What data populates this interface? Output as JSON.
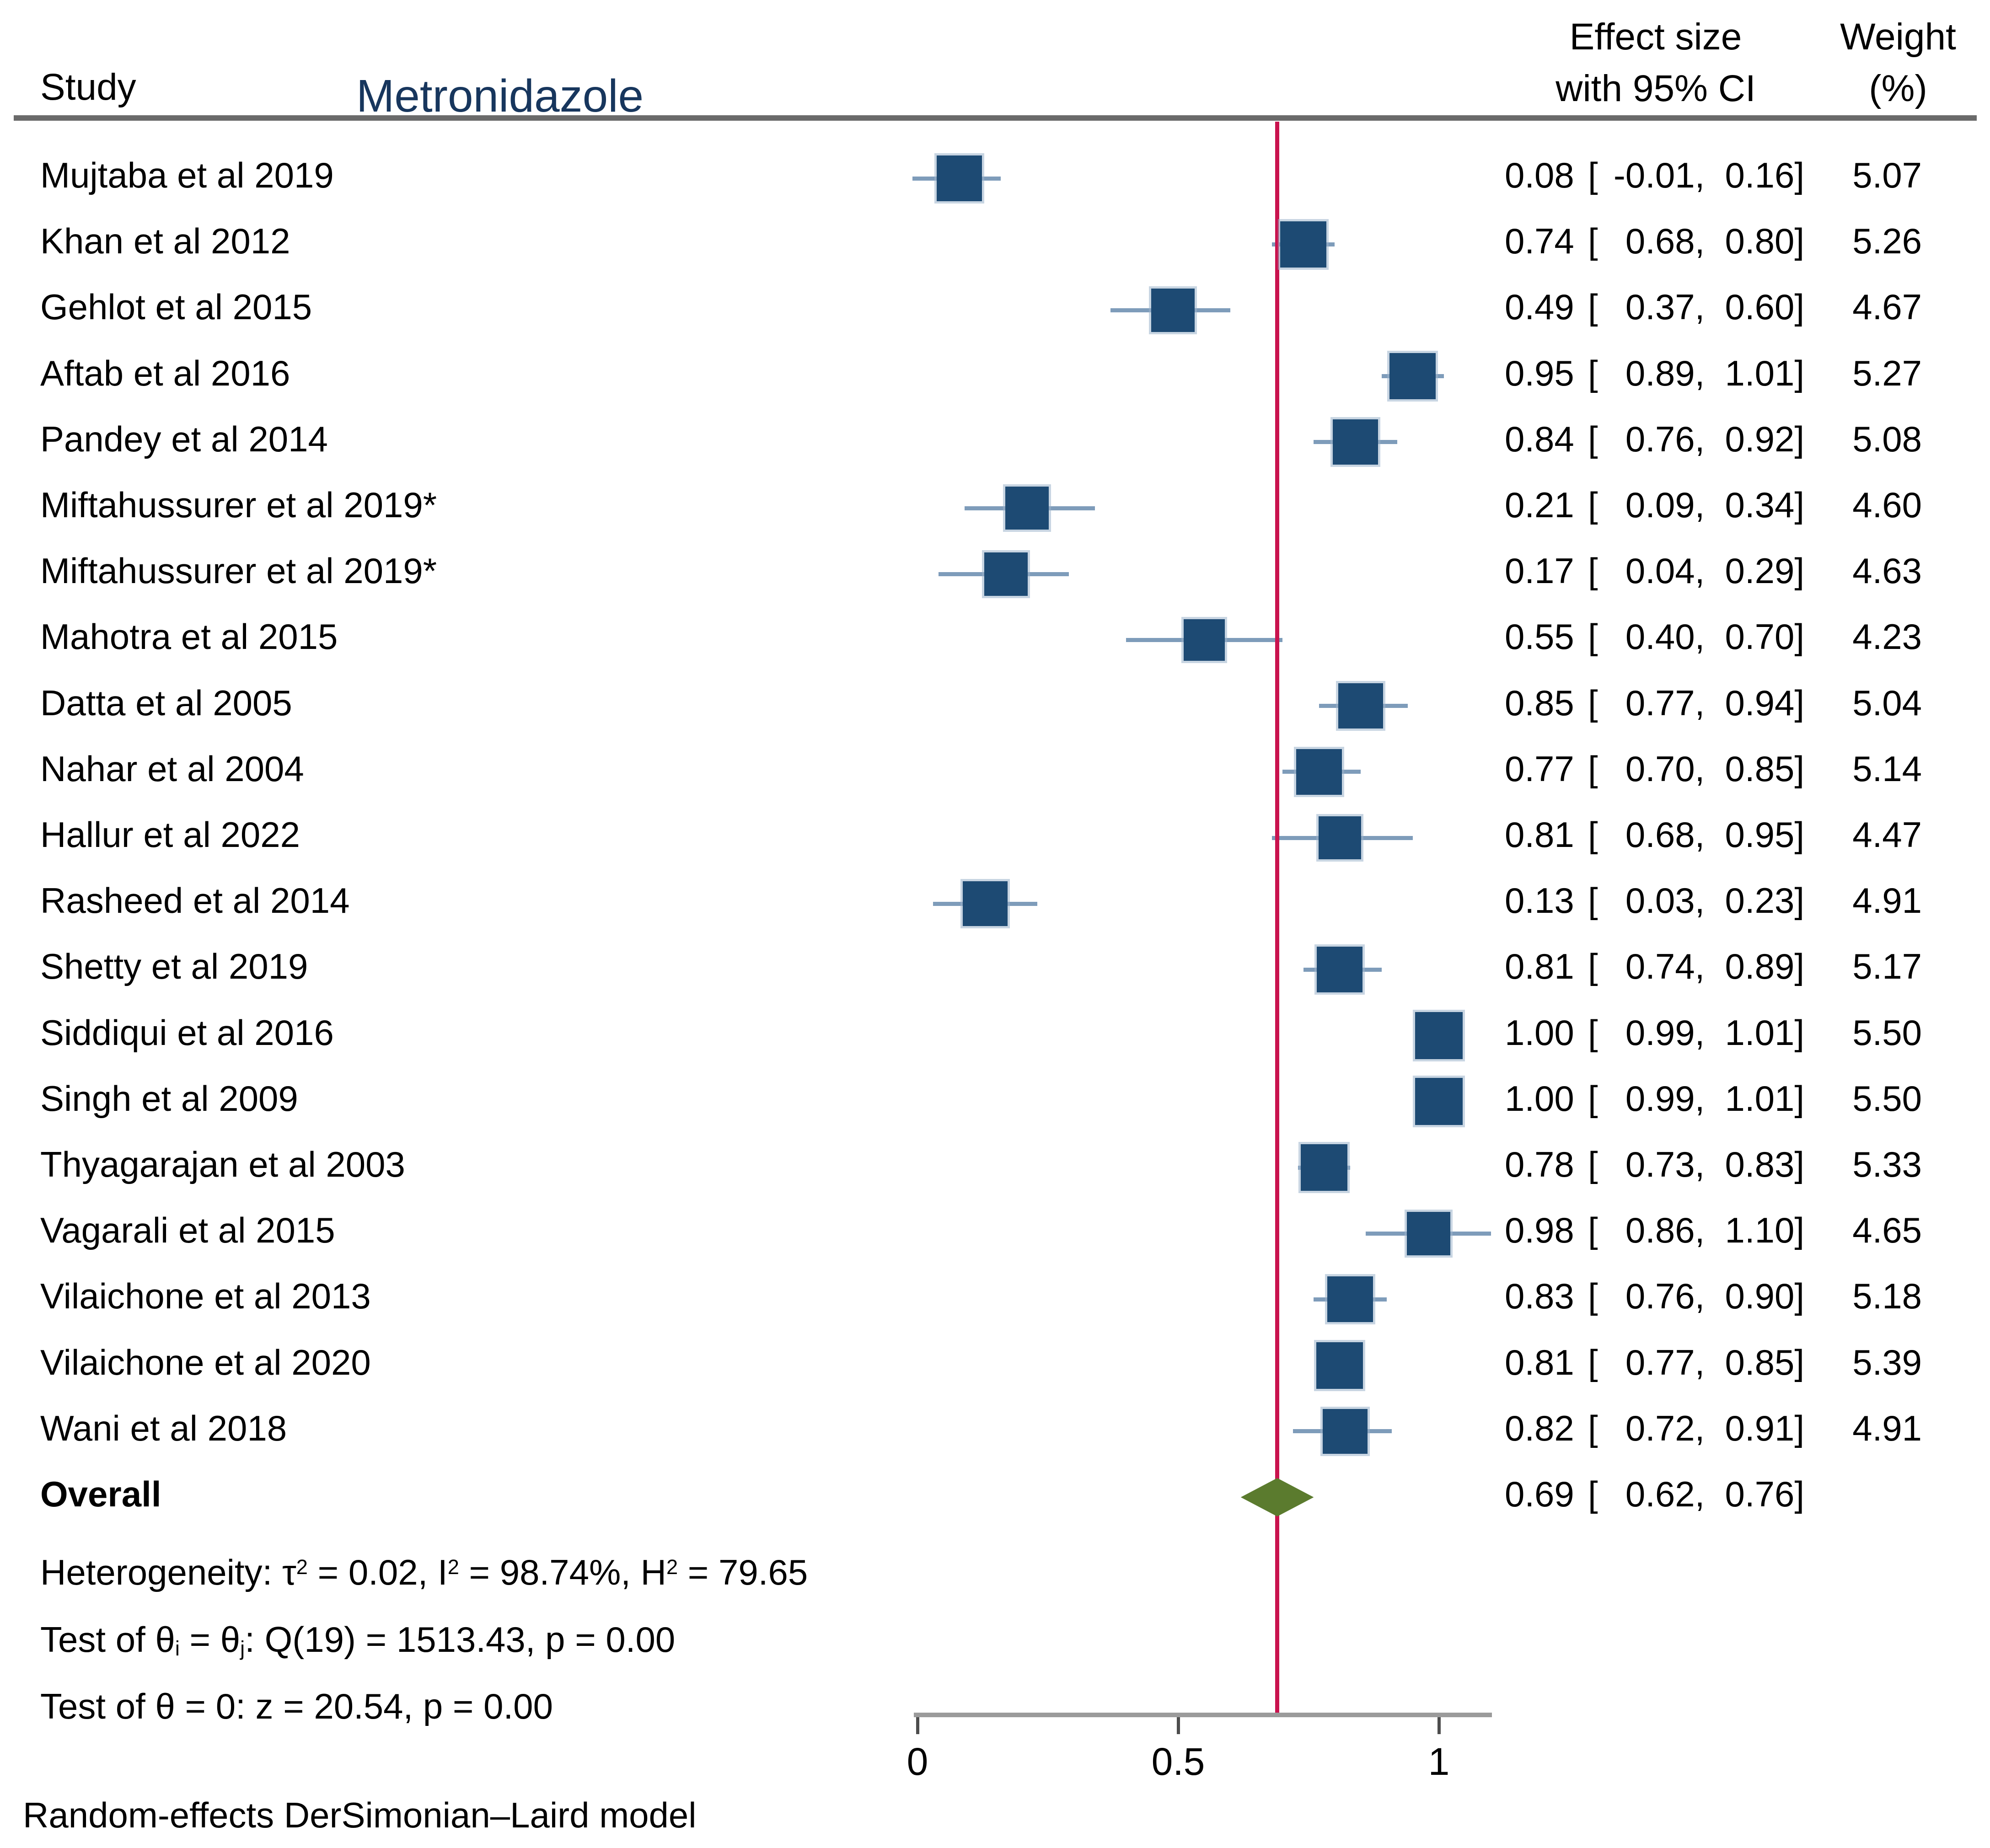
{
  "header": {
    "study_col": "Study",
    "title": "Metronidazole",
    "effect_col_line1": "Effect size",
    "effect_col_line2": "with 95% CI",
    "weight_col_line1": "Weight",
    "weight_col_line2": "(%)"
  },
  "chart_data": {
    "type": "forest",
    "title": "Metronidazole",
    "x_axis": {
      "ticks": [
        0,
        0.5,
        1
      ],
      "tick_labels": [
        "0",
        "0.5",
        "1"
      ],
      "range": [
        -0.01,
        1.1
      ],
      "grid": false
    },
    "reference_line_x": 0.69,
    "studies": [
      {
        "label": "Mujtaba et al 2019",
        "est": 0.08,
        "lb": -0.01,
        "ub": 0.16,
        "weight": 5.07
      },
      {
        "label": "Khan et al 2012",
        "est": 0.74,
        "lb": 0.68,
        "ub": 0.8,
        "weight": 5.26
      },
      {
        "label": "Gehlot et al 2015",
        "est": 0.49,
        "lb": 0.37,
        "ub": 0.6,
        "weight": 4.67
      },
      {
        "label": "Aftab et al 2016",
        "est": 0.95,
        "lb": 0.89,
        "ub": 1.01,
        "weight": 5.27
      },
      {
        "label": "Pandey et al 2014",
        "est": 0.84,
        "lb": 0.76,
        "ub": 0.92,
        "weight": 5.08
      },
      {
        "label": "Miftahussurer et al 2019*",
        "est": 0.21,
        "lb": 0.09,
        "ub": 0.34,
        "weight": 4.6
      },
      {
        "label": "Miftahussurer et al 2019*",
        "est": 0.17,
        "lb": 0.04,
        "ub": 0.29,
        "weight": 4.63
      },
      {
        "label": "Mahotra et al 2015",
        "est": 0.55,
        "lb": 0.4,
        "ub": 0.7,
        "weight": 4.23
      },
      {
        "label": "Datta et al 2005",
        "est": 0.85,
        "lb": 0.77,
        "ub": 0.94,
        "weight": 5.04
      },
      {
        "label": "Nahar et al 2004",
        "est": 0.77,
        "lb": 0.7,
        "ub": 0.85,
        "weight": 5.14
      },
      {
        "label": "Hallur et al 2022",
        "est": 0.81,
        "lb": 0.68,
        "ub": 0.95,
        "weight": 4.47
      },
      {
        "label": "Rasheed et al 2014",
        "est": 0.13,
        "lb": 0.03,
        "ub": 0.23,
        "weight": 4.91
      },
      {
        "label": "Shetty et al 2019",
        "est": 0.81,
        "lb": 0.74,
        "ub": 0.89,
        "weight": 5.17
      },
      {
        "label": "Siddiqui et al 2016",
        "est": 1.0,
        "lb": 0.99,
        "ub": 1.01,
        "weight": 5.5
      },
      {
        "label": "Singh et al 2009",
        "est": 1.0,
        "lb": 0.99,
        "ub": 1.01,
        "weight": 5.5
      },
      {
        "label": "Thyagarajan et al 2003",
        "est": 0.78,
        "lb": 0.73,
        "ub": 0.83,
        "weight": 5.33
      },
      {
        "label": "Vagarali et al 2015",
        "est": 0.98,
        "lb": 0.86,
        "ub": 1.1,
        "weight": 4.65
      },
      {
        "label": "Vilaichone et al 2013",
        "est": 0.83,
        "lb": 0.76,
        "ub": 0.9,
        "weight": 5.18
      },
      {
        "label": "Vilaichone et al 2020",
        "est": 0.81,
        "lb": 0.77,
        "ub": 0.85,
        "weight": 5.39
      },
      {
        "label": "Wani et al 2018",
        "est": 0.82,
        "lb": 0.72,
        "ub": 0.91,
        "weight": 4.91
      }
    ],
    "overall": {
      "label": "Overall",
      "est": 0.69,
      "lb": 0.62,
      "ub": 0.76
    },
    "legend_position": "none",
    "colors": {
      "marker": "#1d4a73",
      "ci_line": "#7e9cba",
      "reference_line": "#c9134e",
      "diamond": "#5b7b2e",
      "axis_bar": "#9b9b9b",
      "title_text": "#17365d",
      "header_rule": "#6a6a6a"
    }
  },
  "stats": {
    "lines": [
      {
        "name": "heterogeneity",
        "parts": [
          [
            "t",
            "Heterogeneity: τ"
          ],
          [
            "sup",
            "2"
          ],
          [
            "t",
            " = 0.02, I"
          ],
          [
            "sup",
            "2"
          ],
          [
            "t",
            " = 98.74%, H"
          ],
          [
            "sup",
            "2"
          ],
          [
            "t",
            " = 79.65"
          ]
        ]
      },
      {
        "name": "test-theta-ij",
        "parts": [
          [
            "t",
            "Test of θ"
          ],
          [
            "sub",
            "i"
          ],
          [
            "t",
            " = θ"
          ],
          [
            "sub",
            "j"
          ],
          [
            "t",
            ": Q(19) = 1513.43, p = 0.00"
          ]
        ]
      },
      {
        "name": "test-theta-zero",
        "parts": [
          [
            "t",
            "Test of θ = 0: z = 20.54, p = 0.00"
          ]
        ]
      }
    ]
  },
  "footer": "Random-effects DerSimonian–Laird model"
}
